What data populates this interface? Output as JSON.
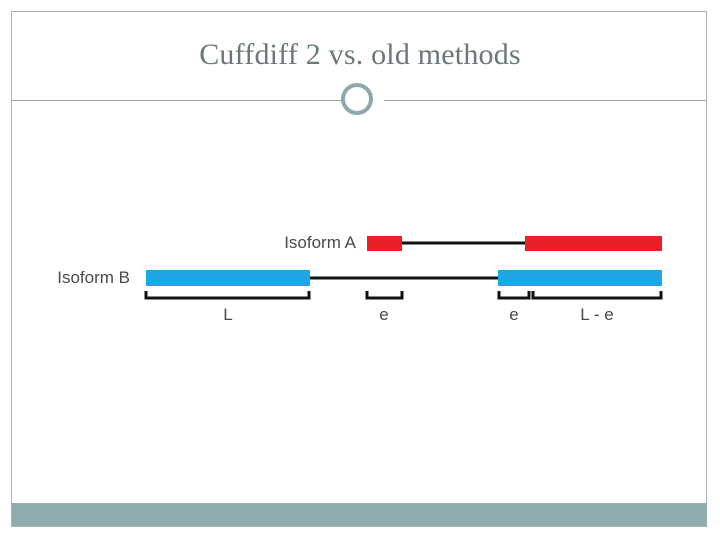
{
  "slide": {
    "title": "Cuffdiff 2 vs. old methods"
  },
  "diagram": {
    "isoform_a_label": "Isoform A",
    "isoform_b_label": "Isoform B",
    "segment_labels": [
      "L",
      "e",
      "e",
      "L - e"
    ],
    "colors": {
      "isoform_a": "#e8202a",
      "isoform_b": "#1fa5e6",
      "intron": "#111111",
      "bracket": "#111111"
    }
  }
}
